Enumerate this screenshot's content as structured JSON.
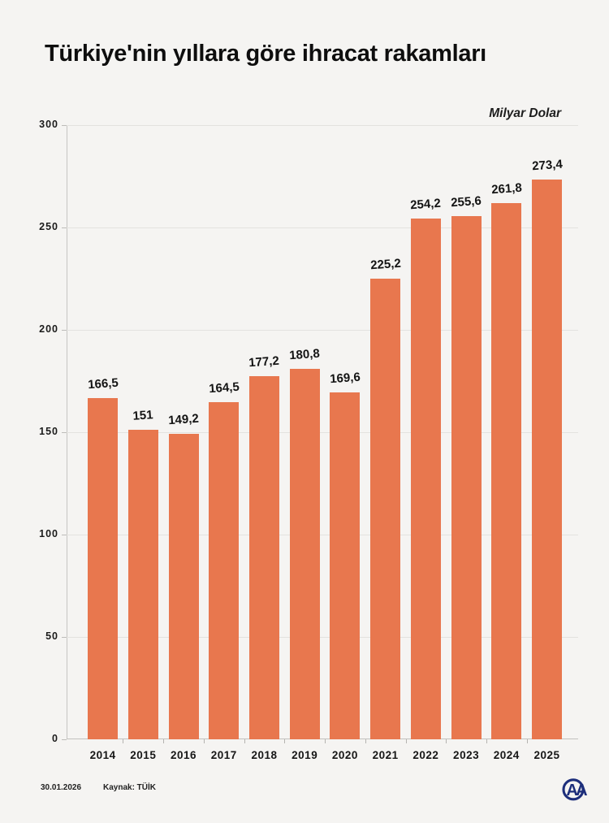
{
  "title": "Türkiye'nin yıllara göre ihracat rakamları",
  "unit_label": "Milyar Dolar",
  "footer": {
    "date": "30.01.2026",
    "source": "Kaynak: TÜİK"
  },
  "colors": {
    "bar": "#E8774E",
    "background": "#F5F4F2",
    "grid": "#E3E2DF",
    "axis": "#C2C1BE",
    "text": "#141414",
    "logo": "#1D2E7B"
  },
  "chart_data": {
    "type": "bar",
    "title": "Türkiye'nin yıllara göre ihracat rakamları",
    "xlabel": "",
    "ylabel": "Milyar Dolar",
    "categories": [
      "2014",
      "2015",
      "2016",
      "2017",
      "2018",
      "2019",
      "2020",
      "2021",
      "2022",
      "2023",
      "2024",
      "2025"
    ],
    "values": [
      166.5,
      151,
      149.2,
      164.5,
      177.2,
      180.8,
      169.6,
      225.2,
      254.2,
      255.6,
      261.8,
      273.4
    ],
    "value_labels": [
      "166,5",
      "151",
      "149,2",
      "164,5",
      "177,2",
      "180,8",
      "169,6",
      "225,2",
      "254,2",
      "255,6",
      "261,8",
      "273,4"
    ],
    "ylim": [
      0,
      300
    ],
    "yticks": [
      0,
      50,
      100,
      150,
      200,
      250,
      300
    ],
    "grid": true,
    "legend": false
  }
}
